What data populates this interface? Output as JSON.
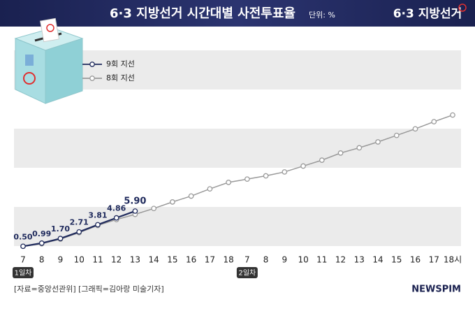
{
  "chart_data": {
    "type": "line",
    "title": "6·3 지방선거 시간대별 사전투표율",
    "unit": "단위: %",
    "logo": "6·3 지방선거",
    "categories": [
      "7",
      "8",
      "9",
      "10",
      "11",
      "12",
      "13",
      "14",
      "15",
      "16",
      "17",
      "18",
      "7",
      "8",
      "9",
      "10",
      "11",
      "12",
      "13",
      "14",
      "15",
      "16",
      "17",
      "18시"
    ],
    "day_labels": [
      "1일차",
      "2일차"
    ],
    "series": [
      {
        "name": "9회 지선",
        "color": "#1f2a5c",
        "values": [
          0.5,
          0.99,
          1.7,
          2.71,
          3.81,
          4.86,
          5.9,
          null,
          null,
          null,
          null,
          null,
          null,
          null,
          null,
          null,
          null,
          null,
          null,
          null,
          null,
          null,
          null,
          null
        ],
        "value_labels": [
          "0.50",
          "0.99",
          "1.70",
          "2.71",
          "3.81",
          "4.86",
          "5.90",
          null,
          null,
          null,
          null,
          null,
          null,
          null,
          null,
          null,
          null,
          null,
          null,
          null,
          null,
          null,
          null,
          null
        ]
      },
      {
        "name": "8회 지선",
        "color": "#9a9a9a",
        "values": [
          0.5,
          0.9,
          1.6,
          2.6,
          3.7,
          4.6,
          5.4,
          6.3,
          7.3,
          8.2,
          9.3,
          10.3,
          10.8,
          11.3,
          11.9,
          12.8,
          13.7,
          14.8,
          15.6,
          16.5,
          17.5,
          18.5,
          19.6,
          20.62
        ]
      }
    ],
    "ylim": [
      0,
      30
    ],
    "source": "[자료=중앙선관위] [그래픽=김아랑 미술기자]",
    "brand": "NEWSPIM"
  }
}
